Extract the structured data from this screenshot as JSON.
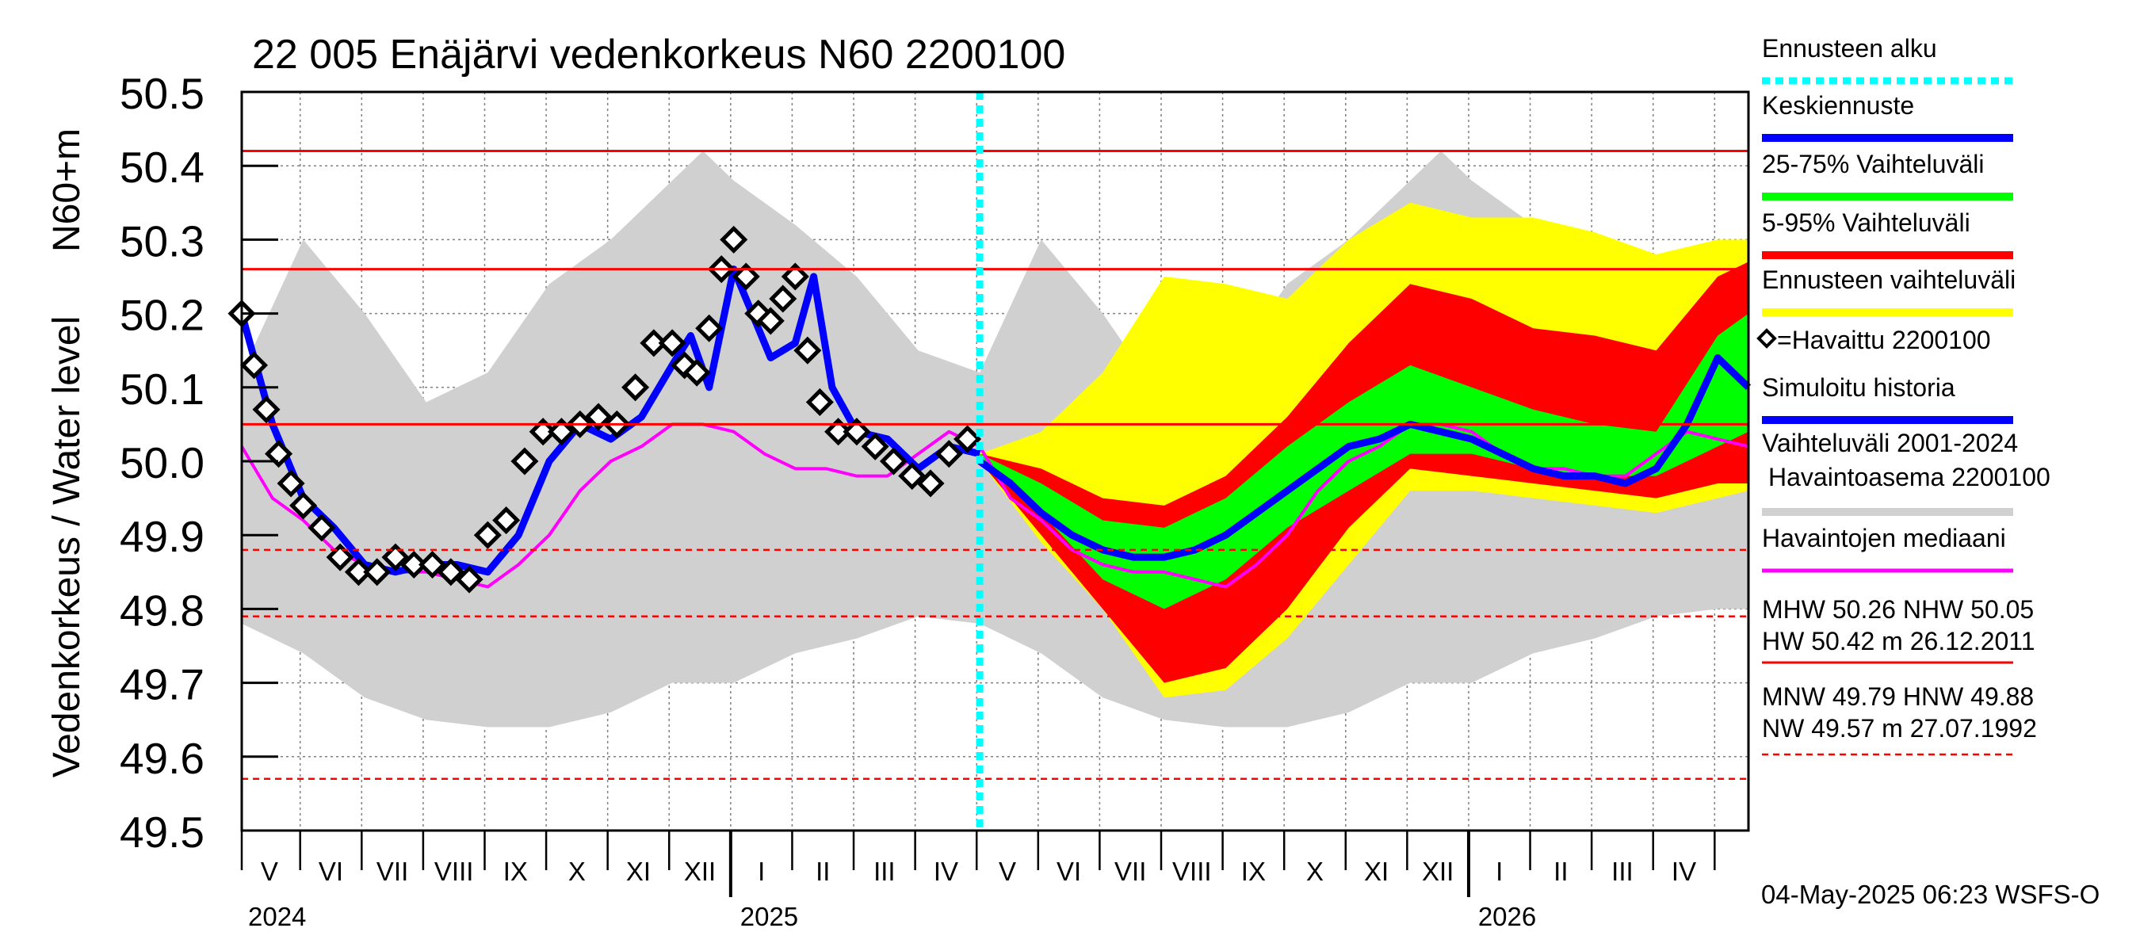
{
  "chart_data": {
    "type": "line",
    "title": "22 005 Enäjärvi vedenkorkeus N60 2200100",
    "ylabel_units": "N60+m",
    "ylabel": "Vedenkorkeus / Water level",
    "ylim": [
      49.5,
      50.5
    ],
    "yticks": [
      49.5,
      49.6,
      49.7,
      49.8,
      49.9,
      50.0,
      50.1,
      50.2,
      50.3,
      50.4,
      50.5
    ],
    "ytick_labels": [
      "49.5",
      "49.6",
      "49.7",
      "49.8",
      "49.9",
      "50.0",
      "50.1",
      "50.2",
      "50.3",
      "50.4",
      "50.5"
    ],
    "x_unit": "months since 2024-04-18",
    "xlim": [
      0,
      24.5
    ],
    "forecast_start": 12.0,
    "month_labels": [
      {
        "label": "V",
        "x": 0.45
      },
      {
        "label": "VI",
        "x": 1.45
      },
      {
        "label": "VII",
        "x": 2.45
      },
      {
        "label": "VIII",
        "x": 3.45
      },
      {
        "label": "IX",
        "x": 4.45
      },
      {
        "label": "X",
        "x": 5.45
      },
      {
        "label": "XI",
        "x": 6.45
      },
      {
        "label": "XII",
        "x": 7.45
      },
      {
        "label": "I",
        "x": 8.45
      },
      {
        "label": "II",
        "x": 9.45
      },
      {
        "label": "III",
        "x": 10.45
      },
      {
        "label": "IV",
        "x": 11.45
      },
      {
        "label": "V",
        "x": 12.45
      },
      {
        "label": "VI",
        "x": 13.45
      },
      {
        "label": "VII",
        "x": 14.45
      },
      {
        "label": "VIII",
        "x": 15.45
      },
      {
        "label": "IX",
        "x": 16.45
      },
      {
        "label": "X",
        "x": 17.45
      },
      {
        "label": "XI",
        "x": 18.45
      },
      {
        "label": "XII",
        "x": 19.45
      },
      {
        "label": "I",
        "x": 20.45
      },
      {
        "label": "II",
        "x": 21.45
      },
      {
        "label": "III",
        "x": 22.45
      },
      {
        "label": "IV",
        "x": 23.45
      }
    ],
    "month_boundaries": [
      0.0,
      0.95,
      1.95,
      2.95,
      3.95,
      4.95,
      5.95,
      6.95,
      7.95,
      8.95,
      9.95,
      10.95,
      11.95,
      12.95,
      13.95,
      14.95,
      15.95,
      16.95,
      17.95,
      18.95,
      19.95,
      20.95,
      21.95,
      22.95,
      23.95
    ],
    "year_boundaries": [
      7.95,
      19.95
    ],
    "years": [
      {
        "label": "2024",
        "x": 0.0
      },
      {
        "label": "2025",
        "x": 8.0
      },
      {
        "label": "2026",
        "x": 20.0
      }
    ],
    "reference_lines": [
      {
        "name": "HW",
        "value": 50.42,
        "style": "solid"
      },
      {
        "name": "MHW",
        "value": 50.26,
        "style": "solid"
      },
      {
        "name": "NHW",
        "value": 50.05,
        "style": "solid"
      },
      {
        "name": "HNW",
        "value": 49.88,
        "style": "dashed"
      },
      {
        "name": "MNW",
        "value": 49.79,
        "style": "dashed"
      },
      {
        "name": "NW",
        "value": 49.57,
        "style": "dashed"
      }
    ],
    "series": [
      {
        "name": "Vaihteluväli 2001-2024 Havaintoasema 2200100",
        "type": "band",
        "color": "#d0d0d0",
        "x": [
          0,
          1,
          2,
          3,
          4,
          5,
          6,
          7,
          7.5,
          8,
          9,
          10,
          11,
          12,
          13,
          14,
          15,
          16,
          17,
          18,
          19,
          19.5,
          20,
          21,
          22,
          23,
          24,
          24.5
        ],
        "low": [
          49.78,
          49.74,
          49.68,
          49.65,
          49.64,
          49.64,
          49.66,
          49.7,
          49.7,
          49.7,
          49.74,
          49.76,
          49.79,
          49.78,
          49.74,
          49.68,
          49.65,
          49.64,
          49.64,
          49.66,
          49.7,
          49.7,
          49.7,
          49.74,
          49.76,
          49.79,
          49.8,
          49.8
        ],
        "high": [
          50.12,
          50.3,
          50.2,
          50.08,
          50.12,
          50.24,
          50.3,
          50.38,
          50.42,
          50.38,
          50.32,
          50.25,
          50.15,
          50.12,
          50.3,
          50.2,
          50.08,
          50.12,
          50.24,
          50.3,
          50.38,
          50.42,
          50.38,
          50.32,
          50.25,
          50.22,
          50.28,
          50.28
        ]
      },
      {
        "name": "Ennusteen vaihteluväli",
        "type": "band",
        "color": "#ffff00",
        "x": [
          12.0,
          13,
          14,
          15,
          16,
          17,
          18,
          19,
          20,
          21,
          22,
          23,
          24,
          24.5
        ],
        "low": [
          50.0,
          49.89,
          49.8,
          49.68,
          49.69,
          49.76,
          49.86,
          49.96,
          49.96,
          49.95,
          49.94,
          49.93,
          49.95,
          49.96
        ],
        "high": [
          50.01,
          50.04,
          50.12,
          50.25,
          50.24,
          50.22,
          50.3,
          50.35,
          50.33,
          50.33,
          50.31,
          50.28,
          50.3,
          50.3
        ]
      },
      {
        "name": "5-95% Vaihteluväli",
        "type": "band",
        "color": "#ff0000",
        "x": [
          12.0,
          13,
          14,
          15,
          16,
          17,
          18,
          19,
          20,
          21,
          22,
          23,
          24,
          24.5
        ],
        "low": [
          50.0,
          49.9,
          49.8,
          49.7,
          49.72,
          49.8,
          49.91,
          49.99,
          49.98,
          49.97,
          49.96,
          49.95,
          49.97,
          49.97
        ],
        "high": [
          50.01,
          49.99,
          49.95,
          49.94,
          49.98,
          50.06,
          50.16,
          50.24,
          50.22,
          50.18,
          50.17,
          50.15,
          50.25,
          50.27
        ]
      },
      {
        "name": "25-75% Vaihteluväli",
        "type": "band",
        "color": "#00ff00",
        "x": [
          12.0,
          13,
          14,
          15,
          16,
          17,
          18,
          19,
          20,
          21,
          22,
          23,
          24,
          24.5
        ],
        "low": [
          50.0,
          49.93,
          49.84,
          49.8,
          49.84,
          49.91,
          49.96,
          50.01,
          50.01,
          49.99,
          49.98,
          49.98,
          50.02,
          50.04
        ],
        "high": [
          50.01,
          49.97,
          49.92,
          49.91,
          49.95,
          50.02,
          50.08,
          50.13,
          50.1,
          50.07,
          50.05,
          50.04,
          50.17,
          50.2
        ]
      },
      {
        "name": "Havaintojen mediaani",
        "type": "line",
        "color": "#ff00ff",
        "x": [
          0,
          0.5,
          1,
          1.5,
          2,
          2.5,
          3,
          3.5,
          4,
          4.5,
          5,
          5.5,
          6,
          6.5,
          7,
          7.5,
          8,
          8.5,
          9,
          9.5,
          10,
          10.5,
          11,
          11.5,
          12,
          12.5,
          13,
          13.5,
          14,
          14.5,
          15,
          15.5,
          16,
          16.5,
          17,
          17.5,
          18,
          18.5,
          19,
          19.5,
          20,
          20.5,
          21,
          21.5,
          22,
          22.5,
          23,
          23.5,
          24,
          24.5
        ],
        "values": [
          50.02,
          49.95,
          49.92,
          49.88,
          49.86,
          49.85,
          49.85,
          49.84,
          49.83,
          49.86,
          49.9,
          49.96,
          50.0,
          50.02,
          50.05,
          50.05,
          50.04,
          50.01,
          49.99,
          49.99,
          49.98,
          49.98,
          50.01,
          50.04,
          50.02,
          49.95,
          49.92,
          49.88,
          49.86,
          49.85,
          49.85,
          49.84,
          49.83,
          49.86,
          49.9,
          49.96,
          50.0,
          50.02,
          50.05,
          50.05,
          50.04,
          50.01,
          49.99,
          49.99,
          49.98,
          49.98,
          50.01,
          50.04,
          50.03,
          50.02
        ]
      },
      {
        "name": "Simuloitu historia",
        "type": "line",
        "color": "#0000ff",
        "x": [
          0,
          0.5,
          1,
          1.5,
          2,
          2.5,
          3,
          3.5,
          4,
          4.5,
          5,
          5.5,
          6,
          6.5,
          7,
          7.3,
          7.6,
          8,
          8.3,
          8.6,
          9,
          9.3,
          9.6,
          10,
          10.5,
          11,
          11.5,
          12
        ],
        "values": [
          50.2,
          50.05,
          49.95,
          49.91,
          49.86,
          49.85,
          49.86,
          49.86,
          49.85,
          49.9,
          50.0,
          50.05,
          50.03,
          50.06,
          50.13,
          50.17,
          50.1,
          50.26,
          50.2,
          50.14,
          50.16,
          50.25,
          50.1,
          50.04,
          50.03,
          49.99,
          50.02,
          50.01
        ]
      },
      {
        "name": "Keskiennuste",
        "type": "line",
        "color": "#0000ff",
        "x": [
          12.0,
          12.5,
          13,
          13.5,
          14,
          14.5,
          15,
          15.5,
          16,
          16.5,
          17,
          17.5,
          18,
          18.5,
          19,
          19.5,
          20,
          20.5,
          21,
          21.5,
          22,
          22.5,
          23,
          23.5,
          24,
          24.5
        ],
        "values": [
          50.0,
          49.97,
          49.93,
          49.9,
          49.88,
          49.87,
          49.87,
          49.88,
          49.9,
          49.93,
          49.96,
          49.99,
          50.02,
          50.03,
          50.05,
          50.04,
          50.03,
          50.01,
          49.99,
          49.98,
          49.98,
          49.97,
          49.99,
          50.05,
          50.14,
          50.1
        ]
      },
      {
        "name": "=Havaittu 2200100",
        "type": "scatter",
        "color": "#000000",
        "x": [
          0,
          0.2,
          0.4,
          0.6,
          0.8,
          1.0,
          1.3,
          1.6,
          1.9,
          2.2,
          2.5,
          2.8,
          3.1,
          3.4,
          3.7,
          4.0,
          4.3,
          4.6,
          4.9,
          5.2,
          5.5,
          5.8,
          6.1,
          6.4,
          6.7,
          7.0,
          7.2,
          7.4,
          7.6,
          7.8,
          8.0,
          8.2,
          8.4,
          8.6,
          8.8,
          9.0,
          9.2,
          9.4,
          9.7,
          10.0,
          10.3,
          10.6,
          10.9,
          11.2,
          11.5,
          11.8
        ],
        "values": [
          50.2,
          50.13,
          50.07,
          50.01,
          49.97,
          49.94,
          49.91,
          49.87,
          49.85,
          49.85,
          49.87,
          49.86,
          49.86,
          49.85,
          49.84,
          49.9,
          49.92,
          50.0,
          50.04,
          50.04,
          50.05,
          50.06,
          50.05,
          50.1,
          50.16,
          50.16,
          50.13,
          50.12,
          50.18,
          50.26,
          50.3,
          50.25,
          50.2,
          50.19,
          50.22,
          50.25,
          50.15,
          50.08,
          50.04,
          50.04,
          50.02,
          50.0,
          49.98,
          49.97,
          50.01,
          50.03
        ]
      }
    ],
    "legend": [
      {
        "label": "Ennusteen alku",
        "color": "#00ffff",
        "style": "dotted"
      },
      {
        "label": "Keskiennuste",
        "color": "#0000ff",
        "style": "solid"
      },
      {
        "label": "25-75% Vaihteluväli",
        "color": "#00ff00",
        "style": "solid"
      },
      {
        "label": "5-95% Vaihteluväli",
        "color": "#ff0000",
        "style": "solid"
      },
      {
        "label": "Ennusteen vaihteluväli",
        "color": "#ffff00",
        "style": "solid"
      },
      {
        "label": "=Havaittu 2200100",
        "color": "#000000",
        "style": "none"
      },
      {
        "label": "Simuloitu historia",
        "color": "#0000ff",
        "style": "solid"
      },
      {
        "label": "Vaihteluväli 2001-2024",
        "label2": "Havaintoasema 2200100",
        "color": "#d0d0d0",
        "style": "solid"
      },
      {
        "label": "Havaintojen mediaani",
        "color": "#ff00ff",
        "style": "solid"
      }
    ],
    "stats": {
      "line1": "MHW  50.26 NHW  50.05",
      "line2": "HW  50.42 m 26.12.2011",
      "line3": "MNW  49.79 HNW  49.88",
      "line4": "NW  49.57 m 27.07.1992"
    },
    "footer": "04-May-2025 06:23 WSFS-O"
  }
}
